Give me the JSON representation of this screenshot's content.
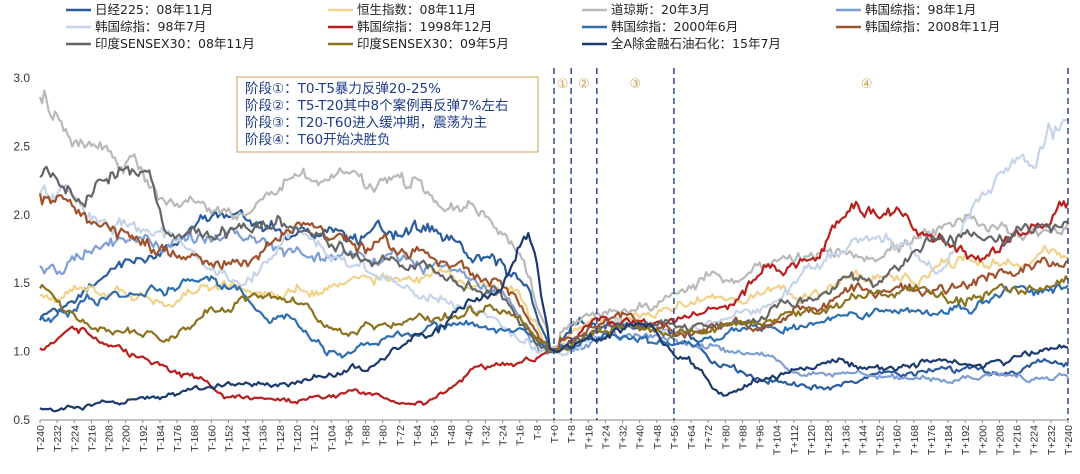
{
  "chart_data": {
    "type": "line",
    "title": "",
    "xlabel": "",
    "ylabel": "",
    "ylim": [
      0.5,
      3.0
    ],
    "yticks": [
      "0.5",
      "1.0",
      "1.5",
      "2.0",
      "2.5",
      "3.0"
    ],
    "x_range": [
      -240,
      240
    ],
    "x_step": 8,
    "legend": [
      {
        "name": "日经225：08年11月",
        "color": "#2b5c9e"
      },
      {
        "name": "恒生指数：08年11月",
        "color": "#f0d28a"
      },
      {
        "name": "道琼斯：20年3月",
        "color": "#b9b9b9"
      },
      {
        "name": "韩国综指：98年1月",
        "color": "#7f9fd3"
      },
      {
        "name": "韩国综指：98年7月",
        "color": "#c6d4ea"
      },
      {
        "name": "韩国综指：1998年12月",
        "color": "#b8201f"
      },
      {
        "name": "韩国综指：2000年6月",
        "color": "#2e6fb0"
      },
      {
        "name": "韩国综指：2008年11月",
        "color": "#a0522d"
      },
      {
        "name": "印度SENSEX30：08年11月",
        "color": "#666666"
      },
      {
        "name": "印度SENSEX30：09年5月",
        "color": "#8b7320"
      },
      {
        "name": "全A除金融石油石化：15年7月",
        "color": "#1c3a6e"
      }
    ],
    "series": [
      {
        "name": "日经225：08年11月",
        "keys": [
          [
            -240,
            1.22
          ],
          [
            -200,
            1.62
          ],
          [
            -150,
            1.95
          ],
          [
            -100,
            1.82
          ],
          [
            -60,
            1.88
          ],
          [
            -30,
            1.7
          ],
          [
            -15,
            1.5
          ],
          [
            0,
            1.0
          ],
          [
            10,
            1.22
          ],
          [
            40,
            1.2
          ],
          [
            60,
            1.12
          ],
          [
            80,
            0.88
          ],
          [
            100,
            0.8
          ],
          [
            130,
            0.75
          ],
          [
            160,
            0.85
          ],
          [
            200,
            0.85
          ],
          [
            240,
            0.94
          ]
        ]
      },
      {
        "name": "恒生指数：08年11月",
        "keys": [
          [
            -240,
            1.42
          ],
          [
            -180,
            1.42
          ],
          [
            -120,
            1.46
          ],
          [
            -60,
            1.52
          ],
          [
            -20,
            1.5
          ],
          [
            0,
            1.02
          ],
          [
            20,
            1.22
          ],
          [
            50,
            1.25
          ],
          [
            80,
            1.42
          ],
          [
            120,
            1.45
          ],
          [
            160,
            1.58
          ],
          [
            200,
            1.65
          ],
          [
            240,
            1.7
          ]
        ]
      },
      {
        "name": "道琼斯：20年3月",
        "keys": [
          [
            -240,
            2.88
          ],
          [
            -220,
            2.5
          ],
          [
            -200,
            2.42
          ],
          [
            -180,
            2.1
          ],
          [
            -150,
            1.95
          ],
          [
            -120,
            2.32
          ],
          [
            -100,
            2.3
          ],
          [
            -70,
            2.2
          ],
          [
            -40,
            2.05
          ],
          [
            -20,
            1.82
          ],
          [
            0,
            1.1
          ],
          [
            20,
            1.25
          ],
          [
            50,
            1.38
          ],
          [
            80,
            1.55
          ],
          [
            110,
            1.62
          ],
          [
            140,
            1.72
          ],
          [
            170,
            1.82
          ],
          [
            200,
            1.9
          ],
          [
            240,
            1.92
          ]
        ]
      },
      {
        "name": "韩国综指：98年1月",
        "keys": [
          [
            -240,
            1.6
          ],
          [
            -200,
            1.82
          ],
          [
            -150,
            1.82
          ],
          [
            -100,
            1.72
          ],
          [
            -60,
            1.65
          ],
          [
            -30,
            1.45
          ],
          [
            0,
            1.0
          ],
          [
            30,
            1.1
          ],
          [
            60,
            1.08
          ],
          [
            90,
            1.0
          ],
          [
            120,
            0.82
          ],
          [
            150,
            0.8
          ],
          [
            180,
            0.78
          ],
          [
            210,
            0.82
          ],
          [
            240,
            0.85
          ]
        ]
      },
      {
        "name": "韩国综指：98年7月",
        "keys": [
          [
            -240,
            2.2
          ],
          [
            -210,
            1.98
          ],
          [
            -180,
            1.85
          ],
          [
            -150,
            1.55
          ],
          [
            -120,
            1.85
          ],
          [
            -90,
            1.62
          ],
          [
            -60,
            1.45
          ],
          [
            -30,
            1.25
          ],
          [
            0,
            1.0
          ],
          [
            30,
            1.2
          ],
          [
            60,
            1.15
          ],
          [
            90,
            1.3
          ],
          [
            120,
            1.55
          ],
          [
            150,
            1.85
          ],
          [
            180,
            1.6
          ],
          [
            200,
            2.2
          ],
          [
            220,
            2.45
          ],
          [
            240,
            2.68
          ]
        ]
      },
      {
        "name": "韩国综指：1998年12月",
        "keys": [
          [
            -240,
            1.02
          ],
          [
            -225,
            1.18
          ],
          [
            -200,
            0.98
          ],
          [
            -170,
            0.82
          ],
          [
            -150,
            0.65
          ],
          [
            -120,
            0.66
          ],
          [
            -90,
            0.7
          ],
          [
            -60,
            0.65
          ],
          [
            -30,
            0.88
          ],
          [
            0,
            1.0
          ],
          [
            20,
            1.25
          ],
          [
            50,
            1.2
          ],
          [
            80,
            1.3
          ],
          [
            100,
            1.6
          ],
          [
            120,
            1.6
          ],
          [
            140,
            2.05
          ],
          [
            160,
            1.95
          ],
          [
            180,
            1.8
          ],
          [
            200,
            1.72
          ],
          [
            220,
            1.88
          ],
          [
            240,
            2.05
          ]
        ]
      },
      {
        "name": "韩国综指：2000年6月",
        "keys": [
          [
            -240,
            1.25
          ],
          [
            -200,
            1.38
          ],
          [
            -160,
            1.55
          ],
          [
            -130,
            1.25
          ],
          [
            -100,
            1.0
          ],
          [
            -70,
            1.1
          ],
          [
            -40,
            1.2
          ],
          [
            -20,
            1.15
          ],
          [
            0,
            1.0
          ],
          [
            30,
            1.1
          ],
          [
            60,
            1.0
          ],
          [
            100,
            1.22
          ],
          [
            140,
            1.28
          ],
          [
            180,
            1.32
          ],
          [
            210,
            1.42
          ],
          [
            240,
            1.45
          ]
        ]
      },
      {
        "name": "韩国综指：2008年11月",
        "keys": [
          [
            -240,
            2.1
          ],
          [
            -210,
            1.9
          ],
          [
            -180,
            1.75
          ],
          [
            -150,
            1.65
          ],
          [
            -120,
            1.9
          ],
          [
            -90,
            1.78
          ],
          [
            -60,
            1.7
          ],
          [
            -30,
            1.55
          ],
          [
            0,
            1.05
          ],
          [
            30,
            1.22
          ],
          [
            60,
            1.12
          ],
          [
            90,
            1.2
          ],
          [
            120,
            1.32
          ],
          [
            150,
            1.45
          ],
          [
            180,
            1.45
          ],
          [
            210,
            1.62
          ],
          [
            240,
            1.68
          ]
        ]
      },
      {
        "name": "印度SENSEX30：08年11月",
        "keys": [
          [
            -240,
            2.3
          ],
          [
            -220,
            2.2
          ],
          [
            -200,
            2.38
          ],
          [
            -190,
            2.3
          ],
          [
            -180,
            1.85
          ],
          [
            -150,
            1.88
          ],
          [
            -120,
            1.95
          ],
          [
            -90,
            1.72
          ],
          [
            -60,
            1.62
          ],
          [
            -30,
            1.45
          ],
          [
            0,
            1.0
          ],
          [
            30,
            1.25
          ],
          [
            60,
            1.2
          ],
          [
            90,
            1.22
          ],
          [
            120,
            1.4
          ],
          [
            150,
            1.55
          ],
          [
            180,
            1.75
          ],
          [
            210,
            1.88
          ],
          [
            240,
            1.95
          ]
        ]
      },
      {
        "name": "印度SENSEX30：09年5月",
        "keys": [
          [
            -240,
            1.48
          ],
          [
            -220,
            1.25
          ],
          [
            -200,
            1.15
          ],
          [
            -180,
            1.1
          ],
          [
            -160,
            1.3
          ],
          [
            -140,
            1.45
          ],
          [
            -120,
            1.32
          ],
          [
            -100,
            1.12
          ],
          [
            -70,
            1.22
          ],
          [
            -40,
            1.3
          ],
          [
            -20,
            1.28
          ],
          [
            0,
            1.0
          ],
          [
            30,
            1.2
          ],
          [
            60,
            1.1
          ],
          [
            90,
            1.15
          ],
          [
            120,
            1.3
          ],
          [
            150,
            1.42
          ],
          [
            180,
            1.4
          ],
          [
            210,
            1.45
          ],
          [
            240,
            1.5
          ]
        ]
      },
      {
        "name": "全A除金融石油石化：15年7月",
        "keys": [
          [
            -240,
            0.58
          ],
          [
            -200,
            0.65
          ],
          [
            -160,
            0.75
          ],
          [
            -120,
            0.78
          ],
          [
            -90,
            0.9
          ],
          [
            -60,
            1.1
          ],
          [
            -30,
            1.4
          ],
          [
            -12,
            1.8
          ],
          [
            0,
            1.0
          ],
          [
            20,
            1.1
          ],
          [
            40,
            1.18
          ],
          [
            60,
            0.95
          ],
          [
            80,
            0.72
          ],
          [
            100,
            0.82
          ],
          [
            130,
            0.92
          ],
          [
            160,
            0.88
          ],
          [
            200,
            0.95
          ],
          [
            240,
            1.02
          ]
        ]
      }
    ],
    "vlines": [
      0,
      8,
      20,
      56,
      240
    ],
    "stage_labels": [
      {
        "text": "①",
        "x": 4
      },
      {
        "text": "②",
        "x": 14
      },
      {
        "text": "③",
        "x": 38
      },
      {
        "text": "④",
        "x": 146
      }
    ],
    "annotation": [
      "阶段①：T0-T5暴力反弹20-25%",
      "阶段②：T5-T20其中8个案例再反弹7%左右",
      "阶段③：T20-T60进入缓冲期，震荡为主",
      "阶段④：T60开始决胜负"
    ]
  }
}
